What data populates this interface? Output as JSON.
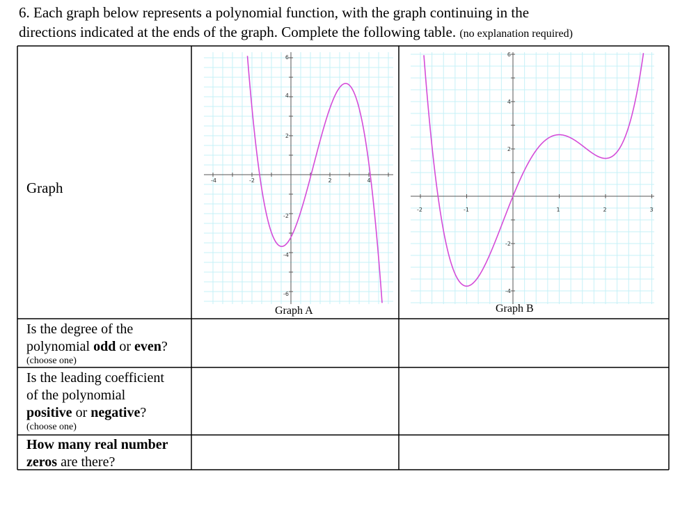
{
  "title": {
    "line1": "6. Each graph below represents a polynomial function, with the graph continuing in the",
    "line2": "directions indicated at the ends of the graph. Complete the following table.",
    "note": "(no explanation required)"
  },
  "table": {
    "header": "Graph",
    "graphs": [
      {
        "caption": "Graph A",
        "x_tick_labels": [
          "-4",
          "-2",
          "2",
          "4"
        ],
        "y_tick_labels": [
          "6",
          "4",
          "2",
          "-2",
          "-4",
          "-6"
        ]
      },
      {
        "caption": "Graph B",
        "x_tick_labels": [
          "-2",
          "-1",
          "1",
          "2",
          "3"
        ],
        "y_tick_labels": [
          "6",
          "4",
          "2",
          "-2",
          "-4"
        ]
      }
    ],
    "rows": [
      {
        "lines": [
          [
            {
              "text": "Is the degree of the",
              "bold": false
            }
          ],
          [
            {
              "text": "polynomial ",
              "bold": false
            },
            {
              "text": "odd",
              "bold": true
            },
            {
              "text": " or ",
              "bold": false
            },
            {
              "text": "even",
              "bold": true
            },
            {
              "text": "?",
              "bold": false
            }
          ]
        ],
        "note": "(choose one)"
      },
      {
        "lines": [
          [
            {
              "text": "Is the leading coefficient",
              "bold": false
            }
          ],
          [
            {
              "text": "of the polynomial",
              "bold": false
            }
          ],
          [
            {
              "text": "positive",
              "bold": true
            },
            {
              "text": " or ",
              "bold": false
            },
            {
              "text": "negative",
              "bold": true
            },
            {
              "text": "?",
              "bold": false
            }
          ]
        ],
        "note": "(choose one)"
      },
      {
        "lines": [
          [
            {
              "text": "How many real number",
              "bold": true
            }
          ],
          [
            {
              "text": "zeros",
              "bold": true
            },
            {
              "text": " are there?",
              "bold": false
            }
          ]
        ]
      }
    ]
  }
}
